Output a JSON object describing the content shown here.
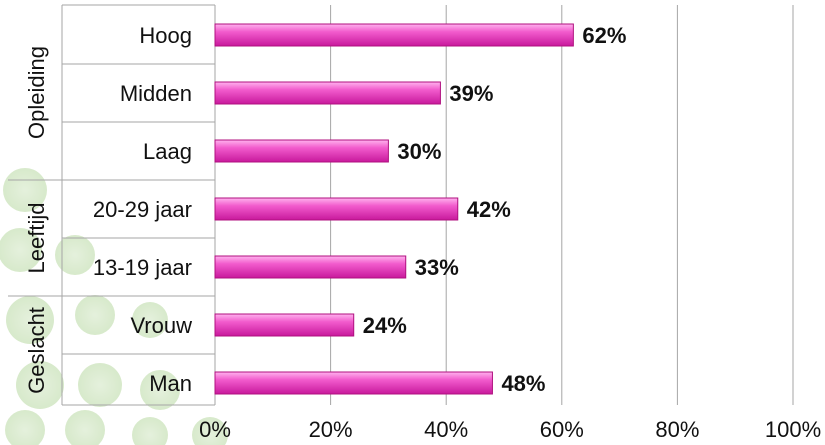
{
  "chart_data": {
    "type": "bar",
    "orientation": "horizontal",
    "categories": [
      "Hoog",
      "Midden",
      "Laag",
      "20-29 jaar",
      "13-19 jaar",
      "Vrouw",
      "Man"
    ],
    "values": [
      62,
      39,
      30,
      42,
      33,
      24,
      48
    ],
    "value_labels": [
      "62%",
      "39%",
      "30%",
      "42%",
      "33%",
      "24%",
      "48%"
    ],
    "groups": [
      {
        "name": "Opleiding",
        "categories": [
          "Hoog",
          "Midden",
          "Laag"
        ]
      },
      {
        "name": "Leeftijd",
        "categories": [
          "20-29 jaar",
          "13-19 jaar"
        ]
      },
      {
        "name": "Geslacht",
        "categories": [
          "Vrouw",
          "Man"
        ]
      }
    ],
    "xlim": [
      0,
      100
    ],
    "xticks": [
      0,
      20,
      40,
      60,
      80,
      100
    ],
    "xtick_labels": [
      "0%",
      "20%",
      "40%",
      "60%",
      "80%",
      "100%"
    ],
    "grid": true,
    "bar_color": "#e633b8",
    "bar_highlight": "#ffb3ee",
    "grid_color": "#a6a6a6",
    "background_decoration_colors": [
      "#a8d08d",
      "#c6e0b4"
    ]
  }
}
